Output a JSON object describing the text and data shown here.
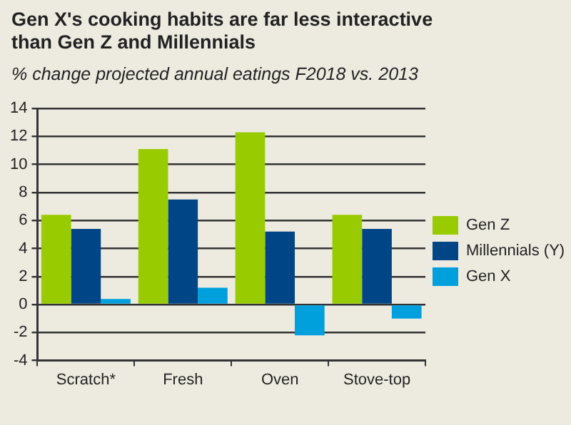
{
  "chart_data": {
    "type": "bar",
    "title": "Gen X's cooking habits are far less interactive than Gen Z and Millennials",
    "subtitle": "% change projected annual eatings F2018 vs. 2013",
    "categories": [
      "Scratch*",
      "Fresh",
      "Oven",
      "Stove-top"
    ],
    "series": [
      {
        "name": "Gen Z",
        "color": "#99cc00",
        "values": [
          6.4,
          11.1,
          12.3,
          6.4
        ]
      },
      {
        "name": "Millennials (Y)",
        "color": "#004687",
        "values": [
          5.4,
          7.5,
          5.2,
          5.4
        ]
      },
      {
        "name": "Gen X",
        "color": "#00a0dd",
        "values": [
          0.4,
          1.2,
          -2.2,
          -1.0
        ]
      }
    ],
    "ylim": [
      -4,
      14
    ],
    "yticks": [
      -4,
      -2,
      0,
      2,
      4,
      6,
      8,
      10,
      12,
      14
    ],
    "grid": "y",
    "legend": "right"
  }
}
